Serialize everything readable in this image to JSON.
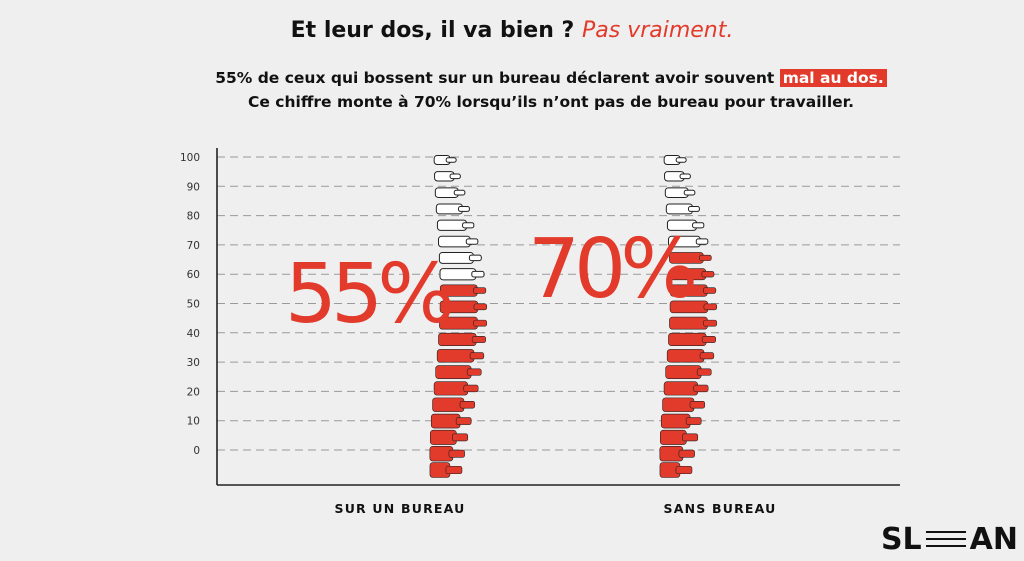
{
  "header": {
    "title": "Et leur dos, il va bien ?",
    "title_accent": "Pas vraiment.",
    "line1": "55% de ceux qui bossent sur un bureau déclarent avoir souvent",
    "line1_highlight": "mal au dos.",
    "line2": "Ce chiffre monte à 70% lorsqu’ils n’ont pas de bureau pour travailler."
  },
  "chart_data": {
    "type": "bar",
    "categories": [
      "SUR UN BUREAU",
      "SANS BUREAU"
    ],
    "values": [
      55,
      70
    ],
    "value_labels": [
      "55%",
      "70%"
    ],
    "y_ticks": [
      0,
      10,
      20,
      30,
      40,
      50,
      60,
      70,
      80,
      90,
      100
    ],
    "ylim": [
      0,
      100
    ],
    "grid": "dashed horizontal",
    "colors": {
      "fill": "#e23a2b",
      "empty": "#ffffff",
      "outline": "#222222"
    }
  },
  "logo": {
    "left": "SL",
    "right": "AN"
  }
}
